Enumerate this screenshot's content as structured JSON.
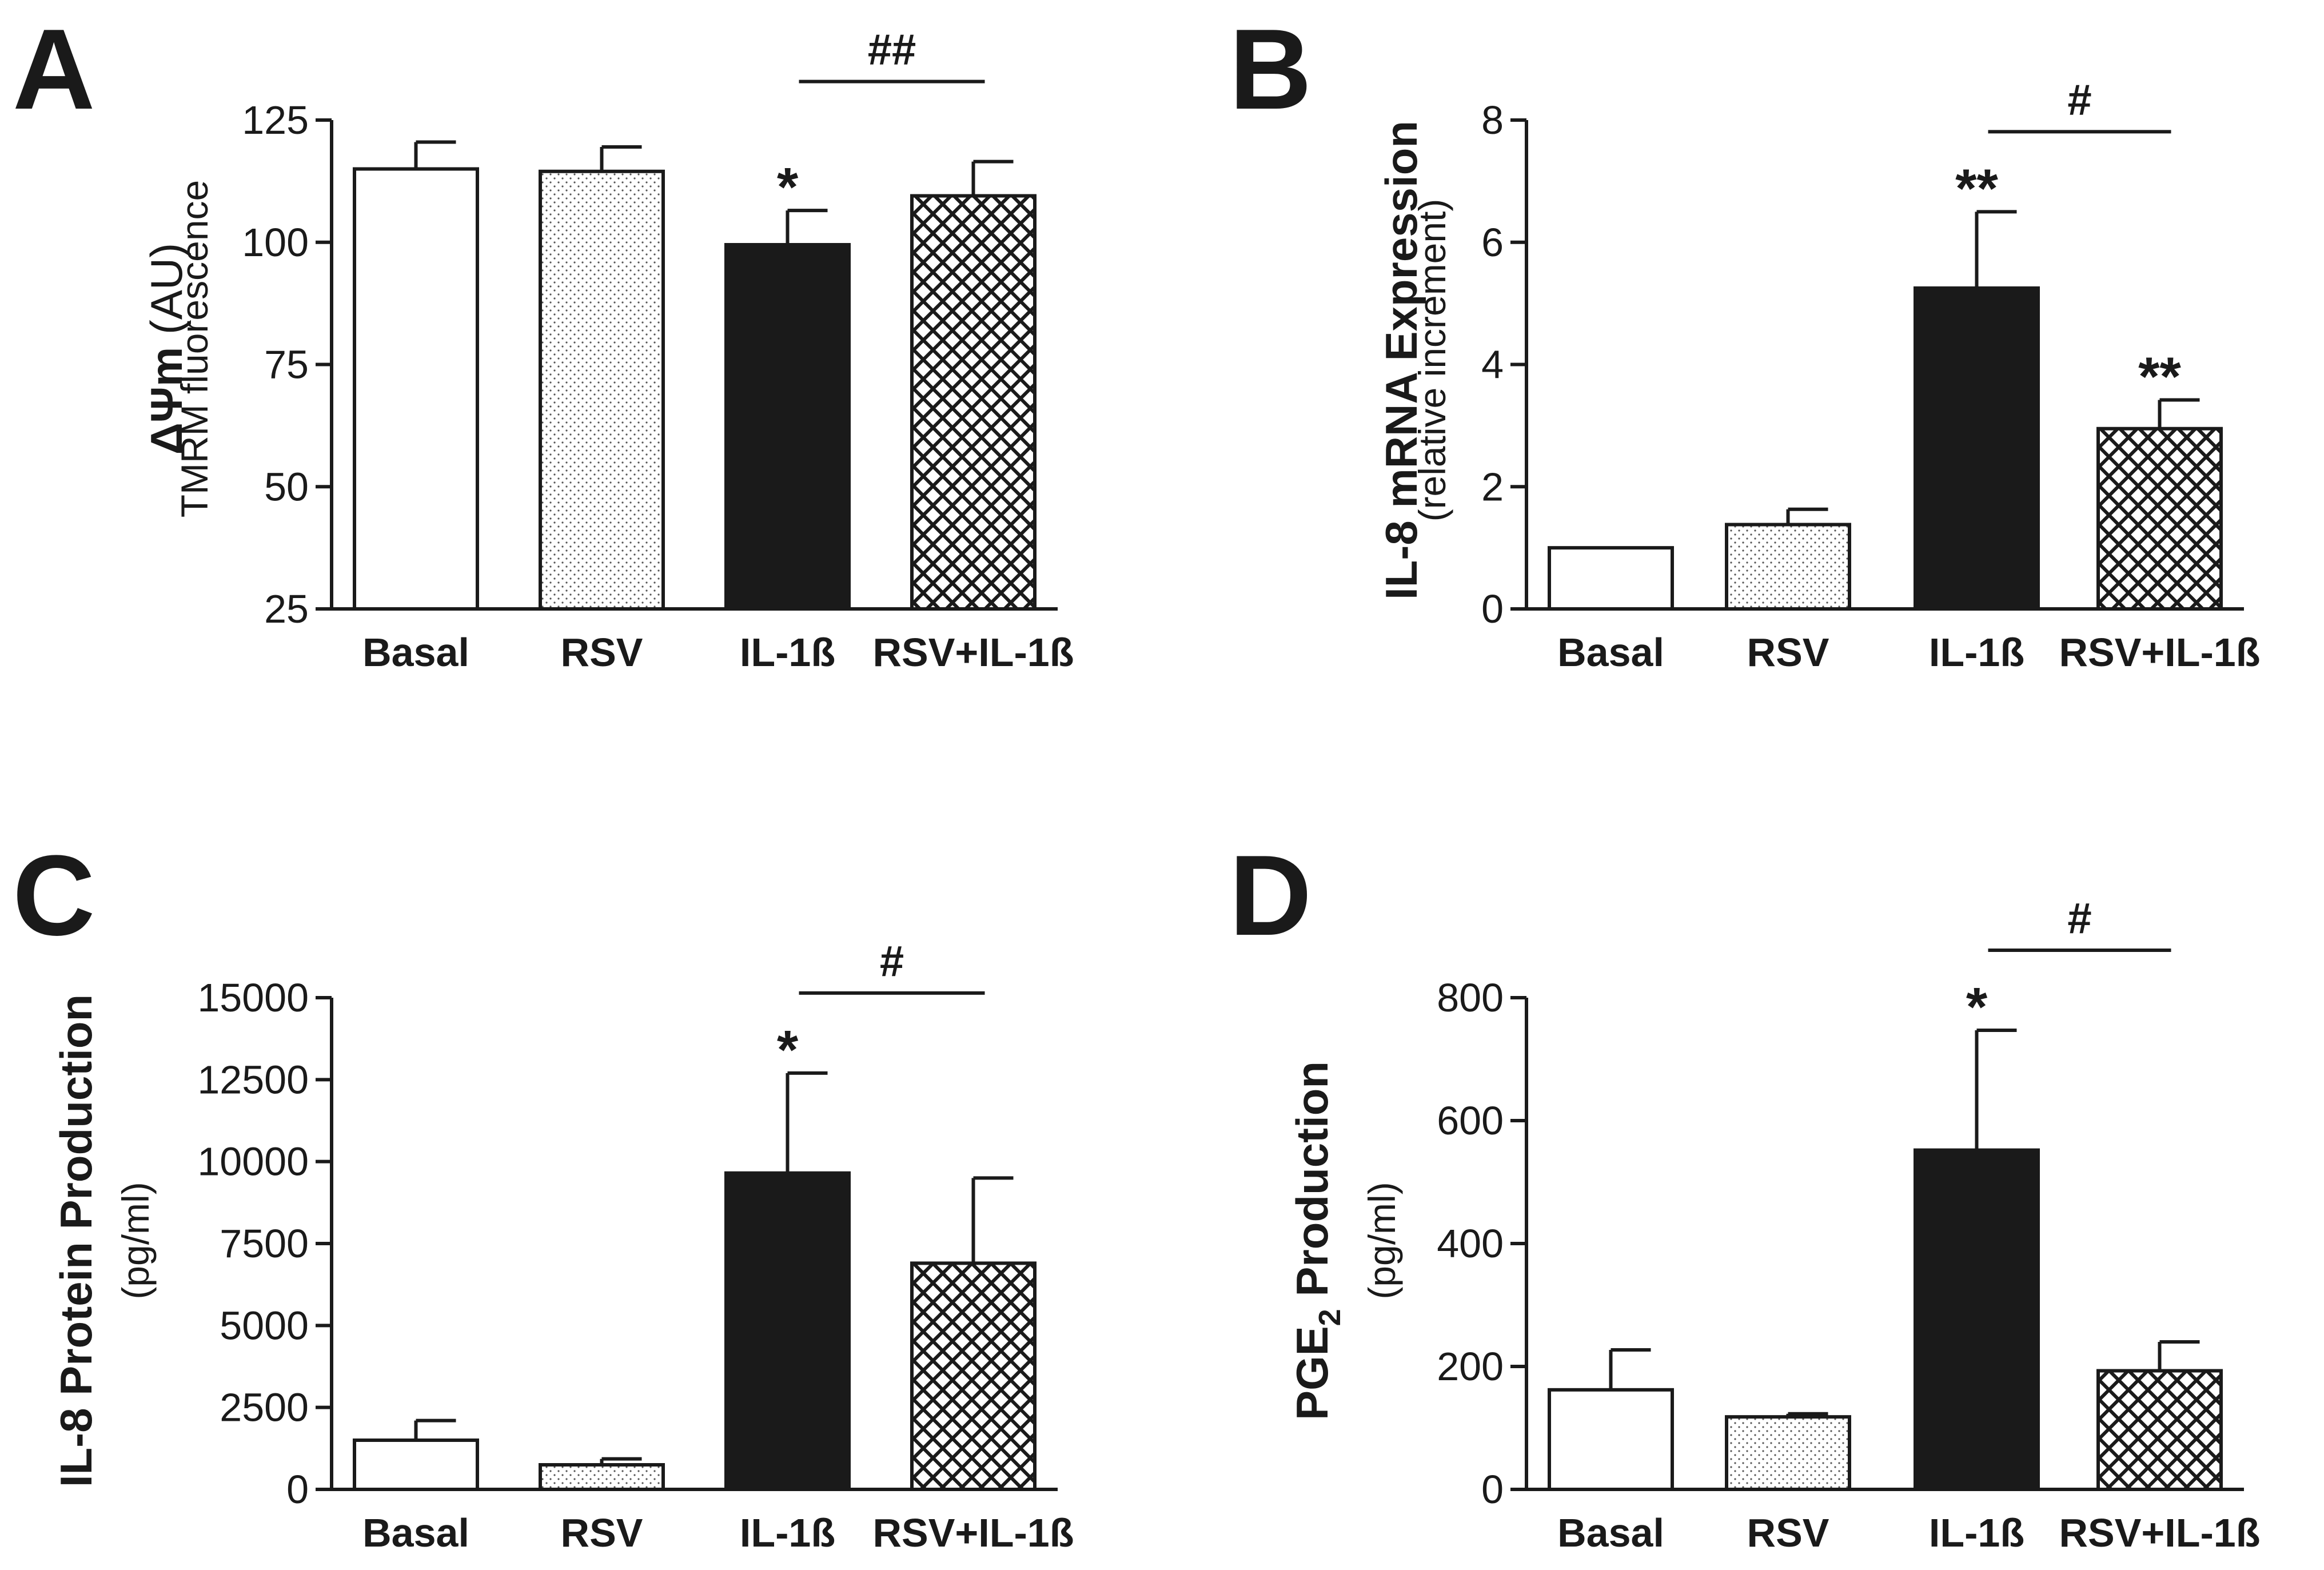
{
  "colors": {
    "ink": "#1a1a1a",
    "basal_fill": "#ffffff",
    "rsv_fill": "dotted",
    "il1b_fill": "#1a1a1a",
    "rsv_il1b_fill": "crosshatch"
  },
  "chart_data": [
    {
      "panel": "A",
      "type": "bar",
      "ylabel_main": "ΔΨm",
      "ylabel_unit": " (AU)",
      "ylabel_sub": "TMRM fluorescence",
      "categories": [
        "Basal",
        "RSV",
        "IL-1ß",
        "RSV+IL-1ß"
      ],
      "values": [
        115,
        114.5,
        99.5,
        109.5
      ],
      "errors": [
        5.5,
        5,
        7,
        7
      ],
      "ylim": [
        25,
        125
      ],
      "yticks": [
        "25",
        "50",
        "75",
        "100",
        "125"
      ],
      "ytick_values": [
        25,
        50,
        75,
        100,
        125
      ],
      "star_labels": [
        "",
        "",
        "*",
        ""
      ],
      "comparison": {
        "from": 2,
        "to": 3,
        "label": "##"
      }
    },
    {
      "panel": "B",
      "type": "bar",
      "ylabel_main": "IL-8 mRNA Expression",
      "ylabel_sub": "(relative increment)",
      "categories": [
        "Basal",
        "RSV",
        "IL-1ß",
        "RSV+IL-1ß"
      ],
      "values": [
        1.0,
        1.38,
        5.25,
        2.95
      ],
      "errors": [
        0,
        0.25,
        1.25,
        0.47
      ],
      "ylim": [
        0,
        8
      ],
      "yticks": [
        "0",
        "2",
        "4",
        "6",
        "8"
      ],
      "ytick_values": [
        0,
        2,
        4,
        6,
        8
      ],
      "star_labels": [
        "",
        "",
        "**",
        "**"
      ],
      "comparison": {
        "from": 2,
        "to": 3,
        "label": "#"
      }
    },
    {
      "panel": "C",
      "type": "bar",
      "ylabel_main": "IL-8 Protein Production",
      "ylabel_sub": "(pg/ml)",
      "categories": [
        "Basal",
        "RSV",
        "IL-1ß",
        "RSV+IL-1ß"
      ],
      "values": [
        1500,
        750,
        9650,
        6900
      ],
      "errors": [
        600,
        180,
        3050,
        2600
      ],
      "ylim": [
        0,
        15000
      ],
      "yticks": [
        "0",
        "2500",
        "5000",
        "7500",
        "10000",
        "12500",
        "15000"
      ],
      "ytick_values": [
        0,
        2500,
        5000,
        7500,
        10000,
        12500,
        15000
      ],
      "star_labels": [
        "",
        "",
        "*",
        ""
      ],
      "comparison": {
        "from": 2,
        "to": 3,
        "label": "#"
      }
    },
    {
      "panel": "D",
      "type": "bar",
      "ylabel_main": "PGE",
      "ylabel_main_sub": "2",
      "ylabel_main_end": " Production",
      "ylabel_sub": "(pg/ml)",
      "categories": [
        "Basal",
        "RSV",
        "IL-1ß",
        "RSV+IL-1ß"
      ],
      "values": [
        162,
        118,
        552,
        193
      ],
      "errors": [
        65,
        5,
        195,
        47
      ],
      "ylim": [
        0,
        800
      ],
      "yticks": [
        "0",
        "200",
        "400",
        "600",
        "800"
      ],
      "ytick_values": [
        0,
        200,
        400,
        600,
        800
      ],
      "star_labels": [
        "",
        "",
        "*",
        ""
      ],
      "comparison": {
        "from": 2,
        "to": 3,
        "label": "#"
      }
    }
  ]
}
